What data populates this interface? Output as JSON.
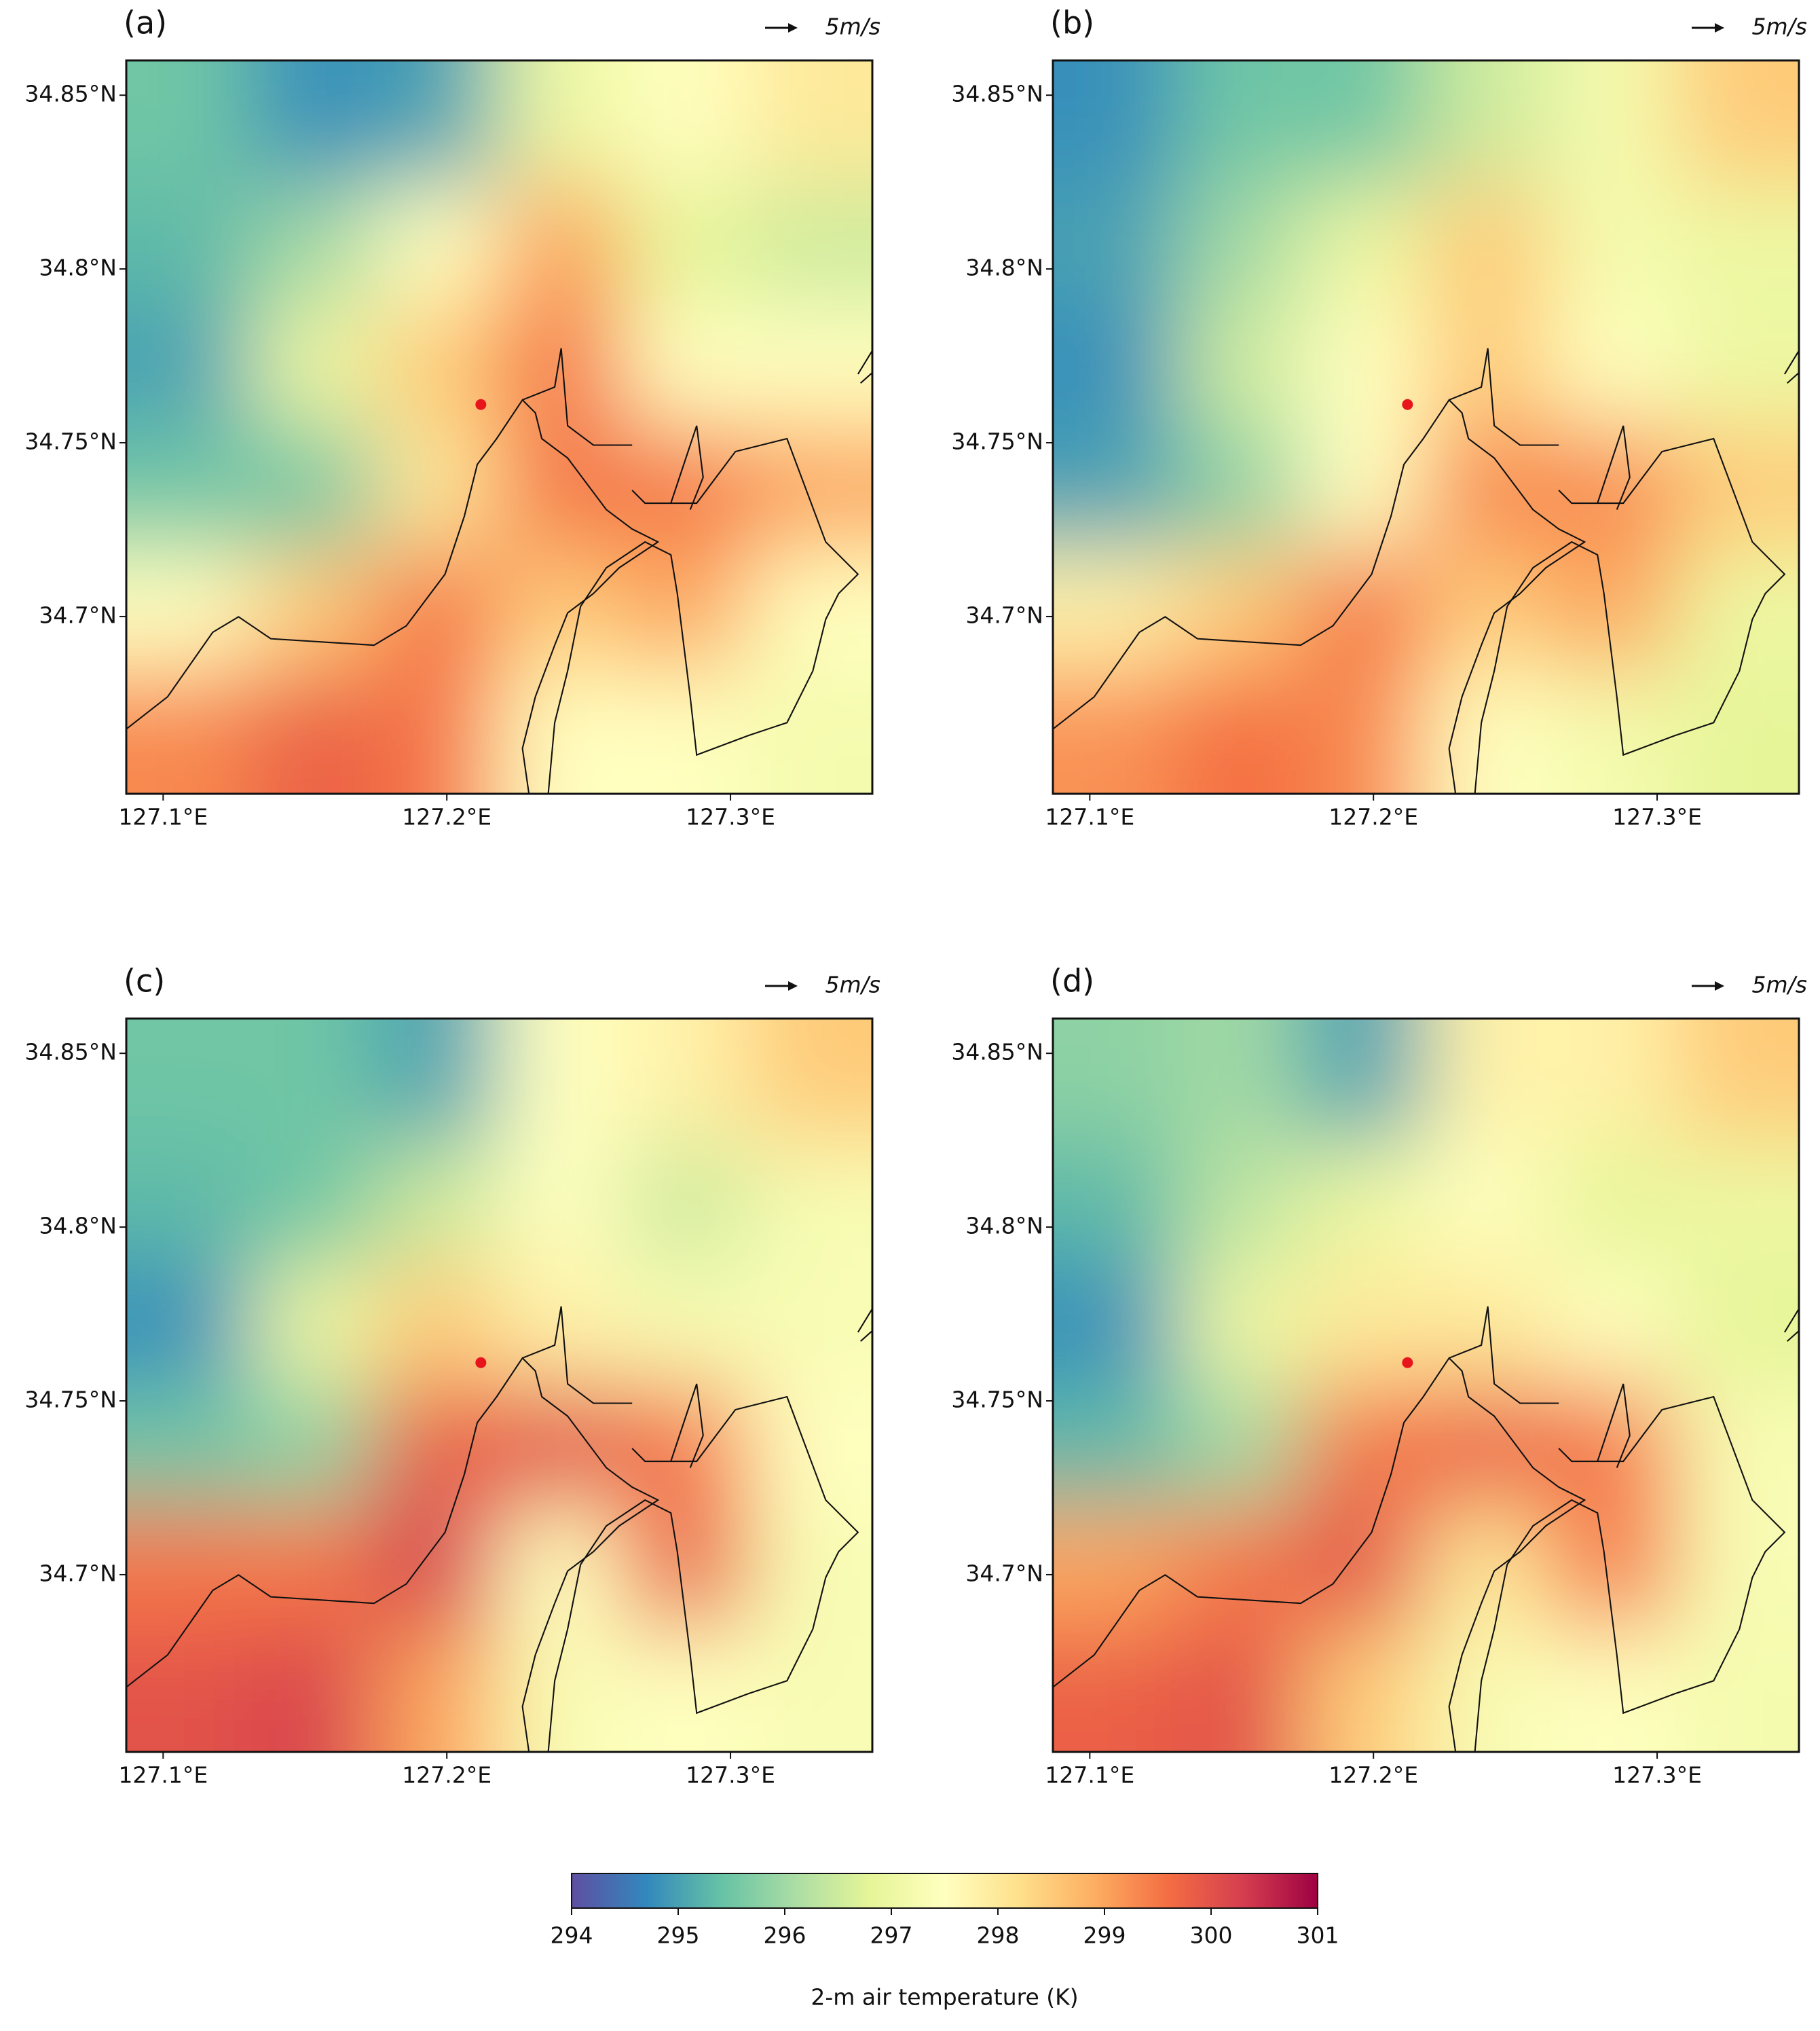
{
  "chart_data": [
    {
      "type": "heatmap",
      "title": "(a)",
      "reference_label": "5m/s",
      "x": [
        127.109,
        127.153,
        127.196,
        127.24,
        127.284,
        127.328
      ],
      "y": [
        34.842,
        34.807,
        34.772,
        34.737,
        34.702,
        34.667
      ],
      "z": [
        [
          295.5,
          294.8,
          295.0,
          297.0,
          297.5,
          298.0
        ],
        [
          295.3,
          296.0,
          297.5,
          299.0,
          296.8,
          296.5
        ],
        [
          295.0,
          297.0,
          298.5,
          299.5,
          297.5,
          297.5
        ],
        [
          295.5,
          295.5,
          298.0,
          299.5,
          299.5,
          299.0
        ],
        [
          297.5,
          298.5,
          299.5,
          298.5,
          299.0,
          297.5
        ],
        [
          299.3,
          299.8,
          299.5,
          297.5,
          297.5,
          297.2
        ]
      ],
      "site": {
        "lon": 127.212,
        "lat": 34.761
      },
      "xlim": [
        127.087,
        127.35
      ],
      "ylim": [
        34.649,
        34.86
      ],
      "xticks": [
        {
          "value": 127.1,
          "label": "127.1°E"
        },
        {
          "value": 127.2,
          "label": "127.2°E"
        },
        {
          "value": 127.3,
          "label": "127.3°E"
        }
      ],
      "yticks": [
        {
          "value": 34.7,
          "label": "34.7°N"
        },
        {
          "value": 34.75,
          "label": "34.75°N"
        },
        {
          "value": 34.8,
          "label": "34.8°N"
        },
        {
          "value": 34.85,
          "label": "34.85°N"
        }
      ]
    },
    {
      "type": "heatmap",
      "title": "(b)",
      "reference_label": "5m/s",
      "x": [
        127.109,
        127.153,
        127.196,
        127.24,
        127.284,
        127.328
      ],
      "y": [
        34.842,
        34.807,
        34.772,
        34.737,
        34.702,
        34.667
      ],
      "z": [
        [
          294.8,
          295.5,
          295.5,
          296.5,
          297.2,
          298.5
        ],
        [
          295.0,
          296.0,
          297.0,
          298.5,
          297.2,
          297.0
        ],
        [
          294.8,
          296.5,
          297.5,
          298.5,
          297.5,
          297.0
        ],
        [
          295.0,
          295.8,
          297.5,
          299.3,
          299.3,
          298.5
        ],
        [
          297.8,
          298.5,
          299.5,
          298.5,
          299.0,
          297.0
        ],
        [
          299.2,
          299.6,
          299.3,
          297.5,
          297.2,
          296.8
        ]
      ],
      "site": {
        "lon": 127.212,
        "lat": 34.761
      },
      "xlim": [
        127.087,
        127.35
      ],
      "ylim": [
        34.649,
        34.86
      ],
      "xticks": [
        {
          "value": 127.1,
          "label": "127.1°E"
        },
        {
          "value": 127.2,
          "label": "127.2°E"
        },
        {
          "value": 127.3,
          "label": "127.3°E"
        }
      ],
      "yticks": [
        {
          "value": 34.7,
          "label": "34.7°N"
        },
        {
          "value": 34.75,
          "label": "34.75°N"
        },
        {
          "value": 34.8,
          "label": "34.8°N"
        },
        {
          "value": 34.85,
          "label": "34.85°N"
        }
      ]
    },
    {
      "type": "heatmap",
      "title": "(c)",
      "reference_label": "5m/s",
      "x": [
        127.109,
        127.153,
        127.196,
        127.24,
        127.284,
        127.328
      ],
      "y": [
        34.842,
        34.807,
        34.772,
        34.737,
        34.702,
        34.667
      ],
      "z": [
        [
          295.5,
          295.5,
          295.0,
          297.5,
          297.8,
          298.5
        ],
        [
          295.3,
          295.5,
          296.5,
          297.5,
          296.5,
          297.3
        ],
        [
          294.8,
          297.0,
          298.5,
          297.8,
          297.3,
          297.3
        ],
        [
          295.5,
          295.8,
          299.8,
          300.0,
          299.5,
          297.5
        ],
        [
          299.5,
          299.5,
          300.3,
          297.5,
          299.8,
          297.3
        ],
        [
          300.0,
          300.2,
          299.0,
          297.3,
          297.5,
          297.3
        ]
      ],
      "site": {
        "lon": 127.212,
        "lat": 34.761
      },
      "xlim": [
        127.087,
        127.35
      ],
      "ylim": [
        34.649,
        34.86
      ],
      "xticks": [
        {
          "value": 127.1,
          "label": "127.1°E"
        },
        {
          "value": 127.2,
          "label": "127.2°E"
        },
        {
          "value": 127.3,
          "label": "127.3°E"
        }
      ],
      "yticks": [
        {
          "value": 34.7,
          "label": "34.7°N"
        },
        {
          "value": 34.75,
          "label": "34.75°N"
        },
        {
          "value": 34.8,
          "label": "34.8°N"
        },
        {
          "value": 34.85,
          "label": "34.85°N"
        }
      ]
    },
    {
      "type": "heatmap",
      "title": "(d)",
      "reference_label": "5m/s",
      "x": [
        127.109,
        127.153,
        127.196,
        127.24,
        127.284,
        127.328
      ],
      "y": [
        34.842,
        34.807,
        34.772,
        34.737,
        34.702,
        34.667
      ],
      "z": [
        [
          295.8,
          296.0,
          295.0,
          297.8,
          297.8,
          298.5
        ],
        [
          295.3,
          296.3,
          297.0,
          297.5,
          296.8,
          297.0
        ],
        [
          294.8,
          297.0,
          298.0,
          298.0,
          297.5,
          296.8
        ],
        [
          295.3,
          296.0,
          299.5,
          299.8,
          299.5,
          297.3
        ],
        [
          299.0,
          299.5,
          300.0,
          298.0,
          299.5,
          297.3
        ],
        [
          299.8,
          300.0,
          298.5,
          297.3,
          297.5,
          297.2
        ]
      ],
      "site": {
        "lon": 127.212,
        "lat": 34.761
      },
      "xlim": [
        127.087,
        127.35
      ],
      "ylim": [
        34.649,
        34.86
      ],
      "xticks": [
        {
          "value": 127.1,
          "label": "127.1°E"
        },
        {
          "value": 127.2,
          "label": "127.2°E"
        },
        {
          "value": 127.3,
          "label": "127.3°E"
        }
      ],
      "yticks": [
        {
          "value": 34.7,
          "label": "34.7°N"
        },
        {
          "value": 34.75,
          "label": "34.75°N"
        },
        {
          "value": 34.8,
          "label": "34.8°N"
        },
        {
          "value": 34.85,
          "label": "34.85°N"
        }
      ]
    }
  ],
  "colorbar": {
    "label": "2-m air temperature (K)",
    "lim": [
      294,
      301
    ],
    "ticks": [
      294,
      295,
      296,
      297,
      298,
      299,
      300,
      301
    ],
    "colors": [
      "#5e4fa2",
      "#3288bd",
      "#66c2a5",
      "#abdda4",
      "#e6f598",
      "#ffffbf",
      "#fee08b",
      "#fdae61",
      "#f46d43",
      "#d53e4f",
      "#9e0142"
    ]
  }
}
